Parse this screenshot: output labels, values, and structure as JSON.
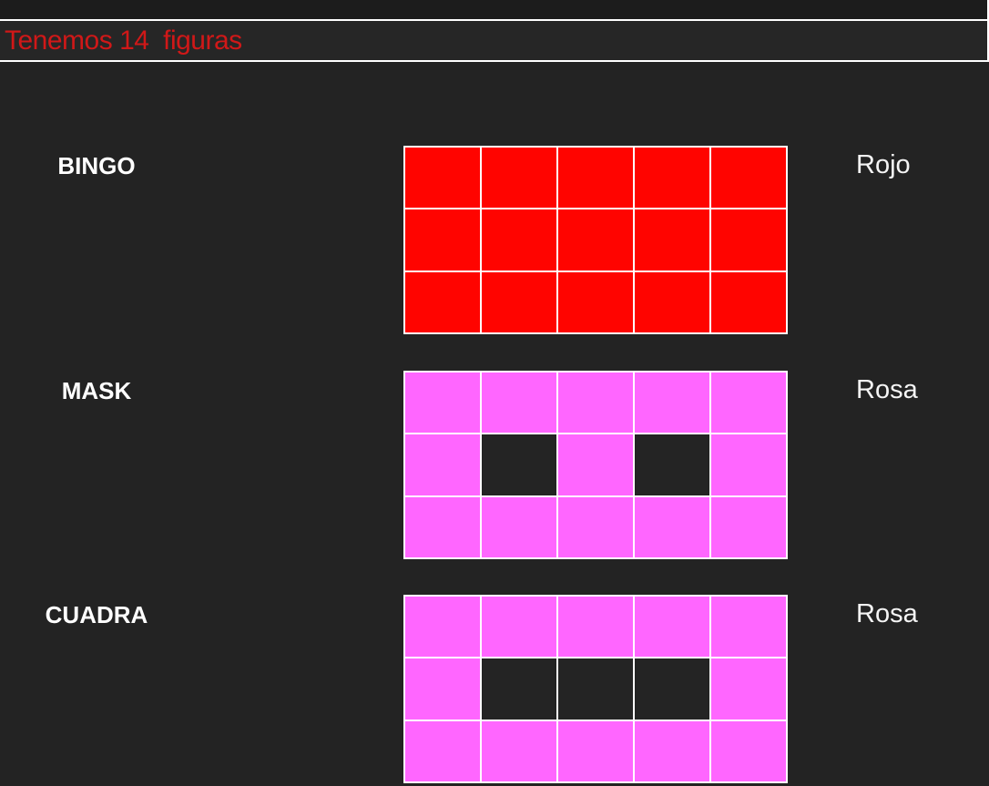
{
  "header": {
    "title": "Tenemos 14  figuras",
    "title_color": "#d01818"
  },
  "colors": {
    "background": "#232323",
    "top_strip": "#1c1c1c",
    "divider": "#ffffff",
    "grid_line": "#ffffff",
    "red": "#ff0400",
    "pink": "#ff66ff",
    "empty_cell": "#242424",
    "label_text": "#ffffff"
  },
  "figures": [
    {
      "name": "BINGO",
      "color_label": "Rojo",
      "cell_color": "#ff0400",
      "rows": 3,
      "cols": 5,
      "pattern": [
        [
          1,
          1,
          1,
          1,
          1
        ],
        [
          1,
          1,
          1,
          1,
          1
        ],
        [
          1,
          1,
          1,
          1,
          1
        ]
      ]
    },
    {
      "name": "MASK",
      "color_label": "Rosa",
      "cell_color": "#ff66ff",
      "rows": 3,
      "cols": 5,
      "pattern": [
        [
          1,
          1,
          1,
          1,
          1
        ],
        [
          1,
          0,
          1,
          0,
          1
        ],
        [
          1,
          1,
          1,
          1,
          1
        ]
      ]
    },
    {
      "name": "CUADRA",
      "color_label": "Rosa",
      "cell_color": "#ff66ff",
      "rows": 3,
      "cols": 5,
      "pattern": [
        [
          1,
          1,
          1,
          1,
          1
        ],
        [
          1,
          0,
          0,
          0,
          1
        ],
        [
          1,
          1,
          1,
          1,
          1
        ]
      ]
    }
  ]
}
